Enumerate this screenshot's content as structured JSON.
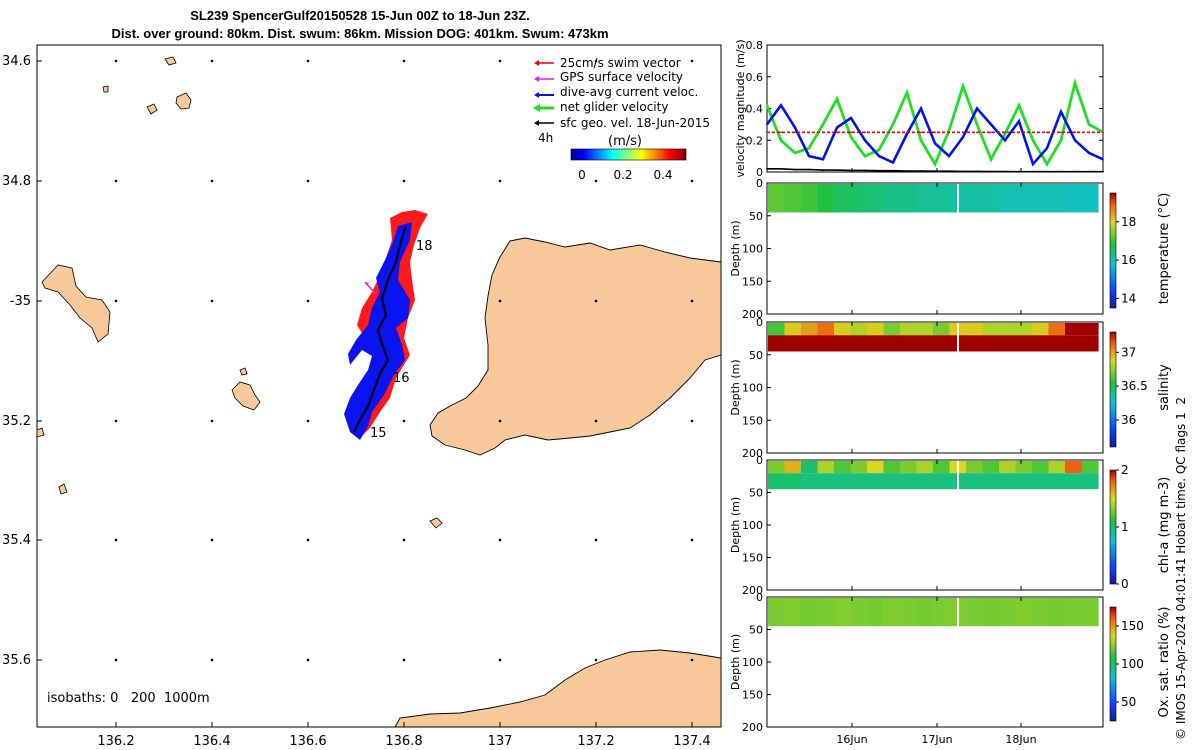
{
  "header": {
    "line1": "SL239 SpencerGulf20150528 15-Jun 00Z to 18-Jun 23Z.",
    "line2": "Dist. over ground: 80km. Dist. swum: 86km. Mission DOG: 401km. Swum: 473km"
  },
  "map": {
    "lon_ticks": [
      "136.2",
      "136.4",
      "136.6",
      "136.8",
      "137",
      "137.2",
      "137.4"
    ],
    "lat_ticks": [
      "34.6",
      "34.8",
      "-35",
      "35.2",
      "35.4",
      "35.6"
    ],
    "isobaths_label": "isobaths: 0   200  1000m",
    "legend": [
      {
        "label": "25cm/s swim vector",
        "color": "#e8000b"
      },
      {
        "label": "GPS surface velocity",
        "color": "#e020e0"
      },
      {
        "label": "dive-avg current veloc.",
        "color": "#0014e6"
      },
      {
        "label": "net glider velocity",
        "color": "#22dd22"
      },
      {
        "label": "sfc geo. vel. 18-Jun-2015",
        "color": "#000000"
      }
    ],
    "interval_label": "4h",
    "colorbar": {
      "label": "(m/s)",
      "ticks": [
        "0",
        "0.2",
        "0.4"
      ]
    },
    "day_labels": [
      "18",
      "16",
      "15"
    ],
    "land_color": "#f7c99a",
    "track_red": "#ff1a1a",
    "track_blue": "#0a14f0"
  },
  "chart_data": [
    {
      "type": "line",
      "ylabel": "velocity magnitude (m/s)",
      "ylim": [
        0,
        0.8
      ],
      "yticks": [
        "0",
        "0.2",
        "0.4",
        "0.6",
        "0.8"
      ],
      "x_hours": [
        0,
        4,
        8,
        12,
        16,
        20,
        24,
        28,
        32,
        36,
        40,
        44,
        48,
        52,
        56,
        60,
        64,
        68,
        72,
        76,
        80,
        84,
        88,
        92,
        96
      ],
      "series": [
        {
          "name": "net glider velocity",
          "color": "#22dd22",
          "values": [
            0.42,
            0.2,
            0.12,
            0.15,
            0.3,
            0.46,
            0.22,
            0.1,
            0.14,
            0.3,
            0.5,
            0.2,
            0.05,
            0.26,
            0.54,
            0.3,
            0.08,
            0.24,
            0.42,
            0.2,
            0.05,
            0.2,
            0.56,
            0.3,
            0.25
          ]
        },
        {
          "name": "dive-avg current veloc.",
          "color": "#0014e6",
          "values": [
            0.3,
            0.42,
            0.28,
            0.1,
            0.08,
            0.28,
            0.34,
            0.2,
            0.1,
            0.06,
            0.24,
            0.4,
            0.18,
            0.1,
            0.22,
            0.4,
            0.3,
            0.2,
            0.32,
            0.05,
            0.15,
            0.38,
            0.2,
            0.12,
            0.08
          ]
        },
        {
          "name": "25cm/s swim vector",
          "color": "#e8000b",
          "values": [
            0.25,
            0.25,
            0.25,
            0.25,
            0.25,
            0.25,
            0.25,
            0.25,
            0.25,
            0.25,
            0.25,
            0.25,
            0.25,
            0.25,
            0.25,
            0.25,
            0.25,
            0.25,
            0.25,
            0.25,
            0.25,
            0.25,
            0.25,
            0.25,
            0.25
          ]
        },
        {
          "name": "sfc geo. vel.",
          "color": "#000000",
          "values": [
            0.02,
            0.02,
            0.015,
            0.015,
            0.012,
            0.012,
            0.01,
            0.01,
            0.008,
            0.008,
            0.006,
            0.006,
            0.005,
            0.005,
            0.004,
            0.004,
            0.003,
            0.003,
            0.002,
            0.002,
            0.002,
            0.002,
            0.002,
            0.002,
            0.002
          ]
        }
      ]
    },
    {
      "type": "heatmap",
      "variable": "temperature",
      "cbar_label": "temperature (°C)",
      "clim": [
        13.5,
        19.5
      ],
      "cbar_ticks": [
        "14",
        "16",
        "18"
      ],
      "ylabel": "Depth (m)",
      "ylim": [
        0,
        200
      ],
      "yticks": [
        "0",
        "50",
        "100",
        "150",
        "200"
      ],
      "data_depth_max": 45,
      "values": [
        17.2,
        17.1,
        17.0,
        16.8,
        16.6,
        16.5,
        16.4,
        16.3,
        16.3,
        16.2,
        16.2,
        16.1,
        16.1,
        16.1,
        16.0,
        16.0,
        16.0,
        16.0,
        15.9,
        15.9
      ]
    },
    {
      "type": "heatmap",
      "variable": "salinity",
      "cbar_label": "salinity",
      "clim": [
        35.6,
        37.3
      ],
      "cbar_ticks": [
        "36",
        "36.5",
        "37"
      ],
      "ylabel": "Depth (m)",
      "ylim": [
        0,
        200
      ],
      "yticks": [
        "0",
        "50",
        "100",
        "150",
        "200"
      ],
      "data_depth_max": 45,
      "surface": [
        36.6,
        36.9,
        37.0,
        37.1,
        36.9,
        36.8,
        36.9,
        36.7,
        36.8,
        36.8,
        36.7,
        36.9,
        36.9,
        36.8,
        36.8,
        36.8,
        36.9,
        37.1,
        37.3,
        37.3
      ],
      "deep": [
        37.3,
        37.3,
        37.3,
        37.3,
        37.3,
        37.3,
        37.3,
        37.3,
        37.3,
        37.3,
        37.3,
        37.3,
        37.3,
        37.3,
        37.3,
        37.3,
        37.3,
        37.3,
        37.3,
        37.3
      ]
    },
    {
      "type": "heatmap",
      "variable": "chl-a",
      "cbar_label": "chl-a (mg m-3)",
      "clim": [
        0,
        2
      ],
      "cbar_ticks": [
        "0",
        "1",
        "2"
      ],
      "ylabel": "Depth (m)",
      "ylim": [
        0,
        200
      ],
      "yticks": [
        "0",
        "50",
        "100",
        "150",
        "200"
      ],
      "data_depth_max": 45,
      "surface": [
        1.3,
        1.6,
        1.0,
        1.4,
        1.2,
        1.3,
        1.5,
        1.2,
        1.3,
        1.4,
        1.2,
        1.5,
        1.3,
        1.2,
        1.4,
        1.3,
        1.2,
        1.4,
        1.8,
        1.2
      ],
      "deep": [
        1.0,
        1.0,
        0.95,
        0.95,
        0.95,
        0.95,
        0.95,
        0.95,
        0.95,
        0.95,
        0.95,
        0.95,
        0.95,
        0.95,
        0.95,
        0.95,
        0.95,
        0.95,
        0.95,
        0.95
      ]
    },
    {
      "type": "heatmap",
      "variable": "Ox. sat. ratio",
      "cbar_label": "Ox. sat. ratio (%)",
      "clim": [
        25,
        175
      ],
      "cbar_ticks": [
        "50",
        "100",
        "150"
      ],
      "ylabel": "Depth (m)",
      "ylim": [
        0,
        200
      ],
      "yticks": [
        "0",
        "50",
        "100",
        "150",
        "200"
      ],
      "data_depth_max": 45,
      "values": [
        122,
        123,
        121,
        122,
        124,
        122,
        121,
        123,
        122,
        121,
        122,
        123,
        122,
        121,
        122,
        123,
        122,
        121,
        122,
        122
      ]
    }
  ],
  "time_axis": {
    "ticks": [
      "16Jun",
      "17Jun",
      "18Jun"
    ]
  },
  "footer": {
    "credit": "© IMOS 15-Apr-2024 04:01:41 Hobart time. QC flags 1  2"
  }
}
